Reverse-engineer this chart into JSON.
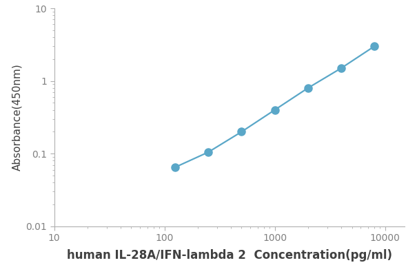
{
  "x": [
    125,
    250,
    500,
    1000,
    2000,
    4000,
    8000
  ],
  "y": [
    0.065,
    0.105,
    0.2,
    0.4,
    0.8,
    1.5,
    3.0
  ],
  "xlim": [
    10,
    15000
  ],
  "ylim": [
    0.01,
    10
  ],
  "xlabel": "human IL-28A/IFN-lambda 2  Concentration(pg/ml)",
  "ylabel": "Absorbance(450nm)",
  "line_color": "#5aa7c8",
  "marker": "o",
  "marker_size": 8,
  "linewidth": 1.6,
  "xlabel_fontsize": 12,
  "ylabel_fontsize": 11,
  "tick_fontsize": 10,
  "background_color": "#ffffff",
  "xlabel_color": "#404040",
  "ylabel_color": "#404040",
  "tick_color": "#808080",
  "spine_color": "#b0b0b0"
}
